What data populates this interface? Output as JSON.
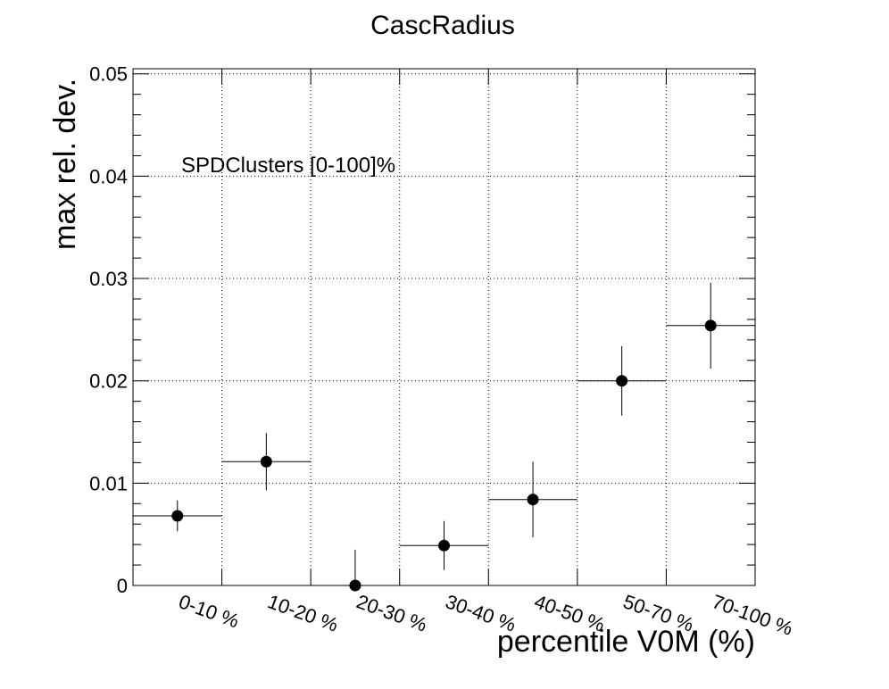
{
  "chart_data": {
    "type": "scatter",
    "title": "CascRadius",
    "xlabel": "percentile V0M (%)",
    "ylabel": "max rel. dev.",
    "annotation": "SPDClusters [0-100]%",
    "categories": [
      "0-10 %",
      "10-20 %",
      "20-30 %",
      "30-40 %",
      "40-50 %",
      "50-70 %",
      "70-100 %"
    ],
    "values": [
      0.0068,
      0.0121,
      0.0,
      0.0039,
      0.0084,
      0.02,
      0.0254
    ],
    "errors": [
      0.0015,
      0.0028,
      0.0035,
      0.0024,
      0.0037,
      0.0034,
      0.0042
    ],
    "ylim": [
      0,
      0.0505
    ],
    "yticks": [
      {
        "value": 0,
        "label": "0"
      },
      {
        "value": 0.01,
        "label": "0.01"
      },
      {
        "value": 0.02,
        "label": "0.02"
      },
      {
        "value": 0.03,
        "label": "0.03"
      },
      {
        "value": 0.04,
        "label": "0.04"
      },
      {
        "value": 0.05,
        "label": "0.05"
      }
    ],
    "grid": true,
    "marker_color": "#000000"
  }
}
